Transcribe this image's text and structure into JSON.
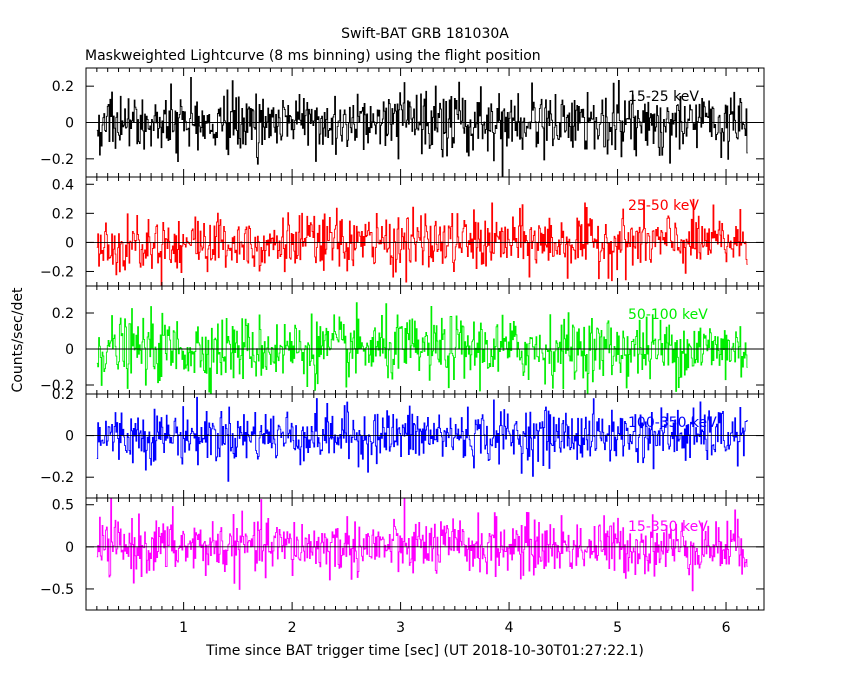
{
  "chart_data": {
    "type": "line",
    "title": "Swift-BAT GRB 181030A",
    "subtitle": "Maskweighted Lightcurve (8 ms binning) using the flight position",
    "xlabel": "Time since BAT trigger time [sec] (UT 2018-10-30T01:27:22.1)",
    "ylabel": "Counts/sec/det",
    "xlim": [
      0.1,
      6.35
    ],
    "xticks": [
      1,
      2,
      3,
      4,
      5,
      6
    ],
    "xtick_labels": [
      "1",
      "2",
      "3",
      "4",
      "5",
      "6"
    ],
    "data_x_range": [
      0.2,
      6.2
    ],
    "bin_width": 0.008,
    "grid": false,
    "panels": [
      {
        "name": "15-25 keV",
        "color": "#000000",
        "ylim": [
          -0.3,
          0.3
        ],
        "yticks": [
          -0.2,
          0,
          0.2
        ],
        "ytick_labels": [
          "−0.2",
          "0",
          "0.2"
        ],
        "noise_sigma": 0.085,
        "mean": 0.0
      },
      {
        "name": "25-50 keV",
        "color": "#ff0000",
        "ylim": [
          -0.3,
          0.45
        ],
        "yticks": [
          -0.2,
          0,
          0.2,
          0.4
        ],
        "ytick_labels": [
          "−0.2",
          "0",
          "0.2",
          "0.4"
        ],
        "noise_sigma": 0.1,
        "mean": 0.0
      },
      {
        "name": "50-100 keV",
        "color": "#00ee00",
        "ylim": [
          -0.25,
          0.35
        ],
        "yticks": [
          -0.2,
          0,
          0.2
        ],
        "ytick_labels": [
          "−0.2",
          "0",
          "0.2"
        ],
        "noise_sigma": 0.09,
        "mean": 0.0
      },
      {
        "name": "100-350 keV",
        "color": "#0000ff",
        "ylim": [
          -0.3,
          0.2
        ],
        "yticks": [
          -0.2,
          0,
          0.2
        ],
        "ytick_labels": [
          "−0.2",
          "0",
          "0.2"
        ],
        "noise_sigma": 0.065,
        "mean": 0.0
      },
      {
        "name": "15-350 keV",
        "color": "#ff00ff",
        "ylim": [
          -0.75,
          0.58
        ],
        "yticks": [
          -0.5,
          0,
          0.5
        ],
        "ytick_labels": [
          "−0.5",
          "0",
          "0.5"
        ],
        "noise_sigma": 0.17,
        "mean": 0.0
      }
    ]
  }
}
